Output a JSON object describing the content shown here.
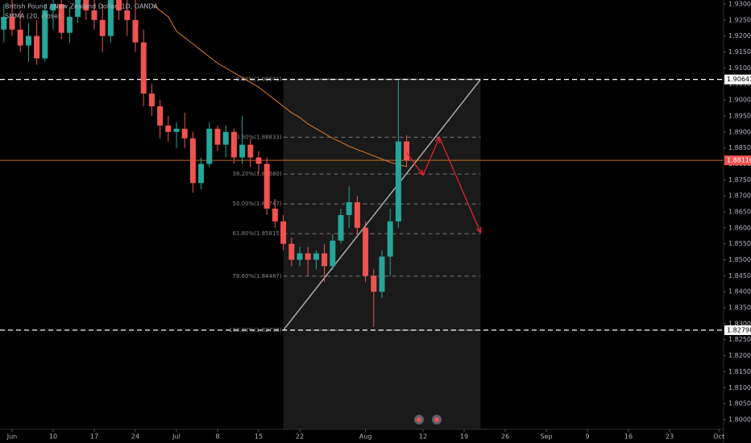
{
  "chart_data": {
    "type": "candlestick",
    "title": "British Pound / New Zealand Dollar, 1D, OANDA",
    "x": [
      "May 31",
      "Jun 3",
      "Jun 4",
      "Jun 5",
      "Jun 6",
      "Jun 7",
      "Jun 10",
      "Jun 11",
      "Jun 12",
      "Jun 13",
      "Jun 14",
      "Jun 17",
      "Jun 18",
      "Jun 19",
      "Jun 20",
      "Jun 21",
      "Jun 24",
      "Jun 25",
      "Jun 26",
      "Jun 27",
      "Jun 28",
      "Jul 1",
      "Jul 2",
      "Jul 3",
      "Jul 4",
      "Jul 5",
      "Jul 8",
      "Jul 9",
      "Jul 10",
      "Jul 11",
      "Jul 12",
      "Jul 15",
      "Jul 16",
      "Jul 17",
      "Jul 18",
      "Jul 19",
      "Jul 22",
      "Jul 23",
      "Jul 24",
      "Jul 25",
      "Jul 26",
      "Jul 29",
      "Jul 30",
      "Jul 31",
      "Aug 1",
      "Aug 2",
      "Aug 5",
      "Aug 6",
      "Aug 7",
      "Aug 8"
    ],
    "open": [
      1.922,
      1.926,
      1.922,
      1.917,
      1.92,
      1.913,
      1.928,
      1.93,
      1.921,
      1.926,
      1.933,
      1.928,
      1.925,
      1.92,
      1.932,
      1.928,
      1.925,
      1.918,
      1.902,
      1.898,
      1.892,
      1.89,
      1.891,
      1.888,
      1.874,
      1.88,
      1.891,
      1.886,
      1.89,
      1.882,
      1.886,
      1.882,
      1.88,
      1.866,
      1.862,
      1.855,
      1.85,
      1.852,
      1.85,
      1.852,
      1.848,
      1.856,
      1.864,
      1.868,
      1.86,
      1.845,
      1.84,
      1.851,
      1.862,
      1.887
    ],
    "high": [
      1.93,
      1.935,
      1.928,
      1.924,
      1.925,
      1.93,
      1.935,
      1.935,
      1.929,
      1.935,
      1.94,
      1.933,
      1.93,
      1.935,
      1.938,
      1.932,
      1.932,
      1.922,
      1.905,
      1.9,
      1.895,
      1.893,
      1.896,
      1.89,
      1.882,
      1.893,
      1.892,
      1.892,
      1.891,
      1.895,
      1.888,
      1.884,
      1.882,
      1.869,
      1.864,
      1.857,
      1.854,
      1.854,
      1.853,
      1.855,
      1.858,
      1.866,
      1.873,
      1.87,
      1.862,
      1.847,
      1.853,
      1.866,
      1.906,
      1.889
    ],
    "low": [
      1.918,
      1.92,
      1.915,
      1.912,
      1.911,
      1.912,
      1.922,
      1.919,
      1.918,
      1.924,
      1.925,
      1.922,
      1.915,
      1.918,
      1.925,
      1.92,
      1.915,
      1.898,
      1.895,
      1.888,
      1.887,
      1.885,
      1.885,
      1.871,
      1.872,
      1.879,
      1.884,
      1.882,
      1.88,
      1.88,
      1.879,
      1.877,
      1.864,
      1.86,
      1.853,
      1.848,
      1.848,
      1.845,
      1.847,
      1.843,
      1.847,
      1.855,
      1.86,
      1.858,
      1.843,
      1.829,
      1.838,
      1.845,
      1.86,
      1.879
    ],
    "close": [
      1.926,
      1.922,
      1.917,
      1.92,
      1.913,
      1.928,
      1.93,
      1.921,
      1.926,
      1.933,
      1.928,
      1.925,
      1.92,
      1.932,
      1.928,
      1.925,
      1.918,
      1.902,
      1.898,
      1.892,
      1.89,
      1.891,
      1.888,
      1.874,
      1.88,
      1.891,
      1.886,
      1.89,
      1.882,
      1.886,
      1.882,
      1.88,
      1.866,
      1.862,
      1.855,
      1.85,
      1.852,
      1.85,
      1.852,
      1.848,
      1.856,
      1.864,
      1.868,
      1.86,
      1.845,
      1.84,
      1.851,
      1.862,
      1.887,
      1.8811
    ],
    "up_color": "#26a69a",
    "down_color": "#ef5350",
    "indicator": {
      "name": "SMMA (20, close)",
      "color": "#e07b24",
      "values": [
        null,
        null,
        null,
        null,
        null,
        null,
        null,
        null,
        null,
        null,
        null,
        null,
        null,
        null,
        null,
        null,
        null,
        null,
        1.93,
        1.928,
        1.926,
        1.9215,
        1.9195,
        1.9175,
        1.9155,
        1.9135,
        1.9115,
        1.91,
        1.9085,
        1.907,
        1.9055,
        1.904,
        1.902,
        1.9,
        1.898,
        1.896,
        1.8945,
        1.8925,
        1.891,
        1.8895,
        1.888,
        1.8868,
        1.8855,
        1.8845,
        1.8835,
        1.8825,
        1.8815,
        1.8805,
        1.8797,
        1.8792
      ]
    },
    "ylim": [
      1.7952,
      1.93126
    ],
    "yticks": [
      {
        "value": 1.8,
        "label": "1.80000"
      },
      {
        "value": 1.805,
        "label": "1.80500"
      },
      {
        "value": 1.81,
        "label": "1.81000"
      },
      {
        "value": 1.815,
        "label": "1.81500"
      },
      {
        "value": 1.82,
        "label": "1.82000"
      },
      {
        "value": 1.825,
        "label": "1.82500"
      },
      {
        "value": 1.83,
        "label": "1.83000"
      },
      {
        "value": 1.835,
        "label": "1.83500"
      },
      {
        "value": 1.84,
        "label": "1.84000"
      },
      {
        "value": 1.845,
        "label": "1.84500"
      },
      {
        "value": 1.85,
        "label": "1.85000"
      },
      {
        "value": 1.855,
        "label": "1.85500"
      },
      {
        "value": 1.86,
        "label": "1.86000"
      },
      {
        "value": 1.865,
        "label": "1.86500"
      },
      {
        "value": 1.87,
        "label": "1.87000"
      },
      {
        "value": 1.875,
        "label": "1.87500"
      },
      {
        "value": 1.88,
        "label": "1.88000"
      },
      {
        "value": 1.885,
        "label": "1.88500"
      },
      {
        "value": 1.89,
        "label": "1.89000"
      },
      {
        "value": 1.895,
        "label": "1.89500"
      },
      {
        "value": 1.9,
        "label": "1.90000"
      },
      {
        "value": 1.905,
        "label": "1.90500"
      },
      {
        "value": 1.91,
        "label": "1.91000"
      },
      {
        "value": 1.915,
        "label": "1.91500"
      },
      {
        "value": 1.92,
        "label": "1.92000"
      },
      {
        "value": 1.925,
        "label": "1.92500"
      },
      {
        "value": 1.93,
        "label": "1.93000"
      }
    ],
    "xticks": [
      {
        "value": "Jun 3",
        "label": "Jun"
      },
      {
        "value": "Jun 10",
        "label": "10"
      },
      {
        "value": "Jun 17",
        "label": "17"
      },
      {
        "value": "Jun 24",
        "label": "24"
      },
      {
        "value": "Jul 1",
        "label": "Jul"
      },
      {
        "value": "Jul 8",
        "label": "8"
      },
      {
        "value": "Jul 15",
        "label": "15"
      },
      {
        "value": "Jul 22",
        "label": "22"
      },
      {
        "value": "Aug 1",
        "label": "Aug"
      },
      {
        "value": "Aug 12",
        "label": "12"
      },
      {
        "value": "Aug 19",
        "label": "19"
      },
      {
        "value": "Aug 26",
        "label": "26"
      },
      {
        "value": "Sep 2",
        "label": "Sep"
      },
      {
        "value": "Sep 9",
        "label": "9"
      },
      {
        "value": "Sep 16",
        "label": "16"
      },
      {
        "value": "Sep 23",
        "label": "23"
      },
      {
        "value": "Oct 1",
        "label": "Oct"
      }
    ],
    "horizontal_lines": [
      1.90641,
      1.82798
    ],
    "last_price": {
      "value": 1.8811,
      "label": "1.88110"
    },
    "last_price_color": "#ef5350",
    "fib": {
      "start": "Jul 18",
      "end": "Aug 21",
      "levels": [
        {
          "value": 1.90641,
          "label": "0.00%(1.90641)"
        },
        {
          "value": 1.88833,
          "label": "23.60%(1.88833)"
        },
        {
          "value": 1.8768,
          "label": "38.20%(1.87680)"
        },
        {
          "value": 1.86747,
          "label": "50.00%(1.86747)"
        },
        {
          "value": 1.85815,
          "label": "61.80%(1.85815)"
        },
        {
          "value": 1.84487,
          "label": "78.60%(1.84487)"
        },
        {
          "value": 1.82798,
          "label": "100.00%(1.82798)"
        }
      ]
    },
    "arrow_path": {
      "color": "#e0242e",
      "x": [
        "Aug 8",
        "Aug 12",
        "Aug 14",
        "Aug 21"
      ],
      "y": [
        1.8835,
        1.8765,
        1.8883,
        1.8585
      ]
    }
  }
}
